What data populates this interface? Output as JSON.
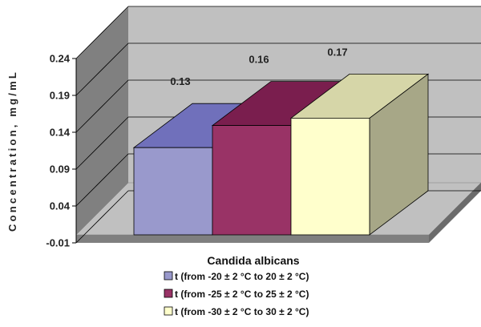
{
  "chart_data": {
    "type": "bar",
    "categories": [
      "Candida albicans"
    ],
    "xlabel": "Candida albicans",
    "ylabel": "Concentration, mg/mL",
    "ylim": [
      -0.01,
      0.24
    ],
    "yticks": [
      "0.24",
      "0.19",
      "0.14",
      "0.09",
      "0.04",
      "-0.01"
    ],
    "grid": true,
    "legend_position": "bottom",
    "series": [
      {
        "name": "t (from -20 ± 2 °C to 20 ± 2 °C)",
        "values": [
          0.13
        ],
        "label": "0.13",
        "color": "#9999cc",
        "topColor": "#7070bb",
        "sideColor": "#6e6e9e"
      },
      {
        "name": "t (from -25 ± 2 °C to 25 ± 2 °C)",
        "values": [
          0.16
        ],
        "label": "0.16",
        "color": "#993366",
        "topColor": "#7a1e4e",
        "sideColor": "#6a1f45"
      },
      {
        "name": "t (from -30 ± 2 °C to 30 ± 2 °C)",
        "values": [
          0.17
        ],
        "label": "0.17",
        "color": "#ffffcc",
        "topColor": "#d6d6a8",
        "sideColor": "#a7a787"
      }
    ]
  }
}
